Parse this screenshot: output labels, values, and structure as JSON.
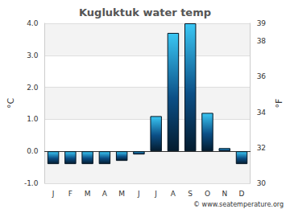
{
  "chart_data": {
    "type": "bar",
    "title": "Kugluktuk water temp",
    "categories": [
      "J",
      "F",
      "M",
      "A",
      "M",
      "J",
      "J",
      "A",
      "S",
      "O",
      "N",
      "D"
    ],
    "values": [
      -0.4,
      -0.4,
      -0.4,
      -0.4,
      -0.3,
      -0.1,
      1.1,
      3.7,
      4.0,
      1.2,
      0.1,
      -0.4
    ],
    "color": "#0b4f86",
    "y_label": "°C",
    "ylim": [
      -1,
      4
    ],
    "yticks": [
      {
        "value": -1,
        "label": "-1.0"
      },
      {
        "value": 0,
        "label": "0.0"
      },
      {
        "value": 1,
        "label": "1.0"
      },
      {
        "value": 2,
        "label": "2.0"
      },
      {
        "value": 3,
        "label": "3.0"
      },
      {
        "value": 4,
        "label": "4.0"
      }
    ],
    "y2_label": "°F",
    "y2lim": [
      30,
      39
    ],
    "y2ticks": [
      30,
      32,
      34,
      36,
      38,
      39
    ],
    "grid": true,
    "annotations": [
      "© www.seatemperature.org"
    ]
  }
}
